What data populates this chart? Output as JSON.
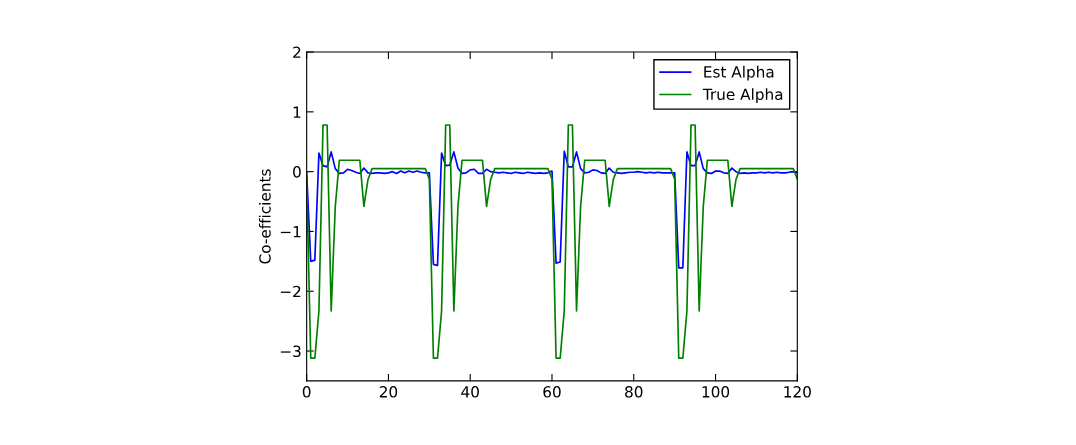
{
  "chart_data": {
    "type": "line",
    "ylabel": "Co-efficients",
    "x": [
      0,
      1,
      2,
      3,
      4,
      5,
      6,
      7,
      8,
      9,
      10,
      11,
      12,
      13,
      14,
      15,
      16,
      17,
      18,
      19,
      20,
      21,
      22,
      23,
      24,
      25,
      26,
      27,
      28,
      29,
      30,
      31,
      32,
      33,
      34,
      35,
      36,
      37,
      38,
      39,
      40,
      41,
      42,
      43,
      44,
      45,
      46,
      47,
      48,
      49,
      50,
      51,
      52,
      53,
      54,
      55,
      56,
      57,
      58,
      59,
      60,
      61,
      62,
      63,
      64,
      65,
      66,
      67,
      68,
      69,
      70,
      71,
      72,
      73,
      74,
      75,
      76,
      77,
      78,
      79,
      80,
      81,
      82,
      83,
      84,
      85,
      86,
      87,
      88,
      89,
      90,
      91,
      92,
      93,
      94,
      95,
      96,
      97,
      98,
      99,
      100,
      101,
      102,
      103,
      104,
      105,
      106,
      107,
      108,
      109,
      110,
      111,
      112,
      113,
      114,
      115,
      116,
      117,
      118,
      119,
      120
    ],
    "series": [
      {
        "name": "Est Alpha",
        "color": "#0000ff",
        "values": [
          -0.02,
          -1.5,
          -1.48,
          0.31,
          0.1,
          0.08,
          0.33,
          0.05,
          -0.03,
          -0.02,
          0.04,
          0.02,
          -0.01,
          -0.03,
          0.06,
          -0.02,
          -0.03,
          -0.02,
          -0.02,
          -0.03,
          -0.02,
          0.0,
          -0.03,
          0.01,
          -0.02,
          0.01,
          -0.01,
          0.01,
          -0.01,
          -0.02,
          -0.02,
          -1.55,
          -1.57,
          0.31,
          0.1,
          0.11,
          0.33,
          0.06,
          -0.03,
          -0.02,
          0.03,
          0.04,
          -0.03,
          -0.03,
          0.04,
          0.0,
          -0.01,
          -0.02,
          -0.01,
          -0.02,
          -0.03,
          -0.01,
          -0.02,
          -0.03,
          -0.01,
          -0.02,
          -0.03,
          -0.02,
          -0.03,
          -0.02,
          0.01,
          -1.53,
          -1.51,
          0.34,
          0.08,
          0.08,
          0.33,
          0.05,
          -0.02,
          -0.01,
          0.03,
          0.02,
          -0.02,
          -0.03,
          0.06,
          -0.01,
          -0.02,
          -0.03,
          -0.02,
          -0.01,
          -0.01,
          0.0,
          -0.01,
          -0.02,
          -0.01,
          -0.02,
          -0.01,
          -0.02,
          -0.02,
          -0.02,
          -0.02,
          -1.61,
          -1.61,
          0.33,
          0.1,
          0.1,
          0.33,
          0.05,
          -0.02,
          -0.03,
          0.01,
          0.01,
          -0.02,
          -0.03,
          0.06,
          0.0,
          -0.03,
          -0.02,
          -0.03,
          -0.02,
          -0.02,
          -0.01,
          -0.02,
          -0.01,
          -0.02,
          -0.01,
          -0.02,
          -0.02,
          -0.01,
          0.0,
          -0.02
        ]
      },
      {
        "name": "True Alpha",
        "color": "#008000",
        "values": [
          -0.12,
          -3.12,
          -3.12,
          -2.33,
          0.78,
          0.78,
          -2.33,
          -0.58,
          0.19,
          0.19,
          0.19,
          0.19,
          0.19,
          0.19,
          -0.58,
          -0.13,
          0.05,
          0.05,
          0.05,
          0.05,
          0.05,
          0.05,
          0.05,
          0.05,
          0.05,
          0.05,
          0.05,
          0.05,
          0.05,
          0.05,
          -0.12,
          -3.12,
          -3.12,
          -2.33,
          0.78,
          0.78,
          -2.33,
          -0.58,
          0.19,
          0.19,
          0.19,
          0.19,
          0.19,
          0.19,
          -0.58,
          -0.13,
          0.05,
          0.05,
          0.05,
          0.05,
          0.05,
          0.05,
          0.05,
          0.05,
          0.05,
          0.05,
          0.05,
          0.05,
          0.05,
          0.05,
          -0.12,
          -3.12,
          -3.12,
          -2.33,
          0.78,
          0.78,
          -2.33,
          -0.58,
          0.19,
          0.19,
          0.19,
          0.19,
          0.19,
          0.19,
          -0.58,
          -0.13,
          0.05,
          0.05,
          0.05,
          0.05,
          0.05,
          0.05,
          0.05,
          0.05,
          0.05,
          0.05,
          0.05,
          0.05,
          0.05,
          0.05,
          -0.12,
          -3.12,
          -3.12,
          -2.33,
          0.78,
          0.78,
          -2.33,
          -0.58,
          0.19,
          0.19,
          0.19,
          0.19,
          0.19,
          0.19,
          -0.58,
          -0.13,
          0.05,
          0.05,
          0.05,
          0.05,
          0.05,
          0.05,
          0.05,
          0.05,
          0.05,
          0.05,
          0.05,
          0.05,
          0.05,
          0.05,
          -0.12
        ]
      }
    ],
    "xlim": [
      0,
      120
    ],
    "xticks": [
      0,
      20,
      40,
      60,
      80,
      100,
      120
    ],
    "ylim": [
      -3.5,
      2
    ],
    "yticks": [
      -3,
      -2,
      -1,
      0,
      1,
      2
    ],
    "grid": false,
    "legend": "top right",
    "marker": "none",
    "line_style": "solid"
  }
}
